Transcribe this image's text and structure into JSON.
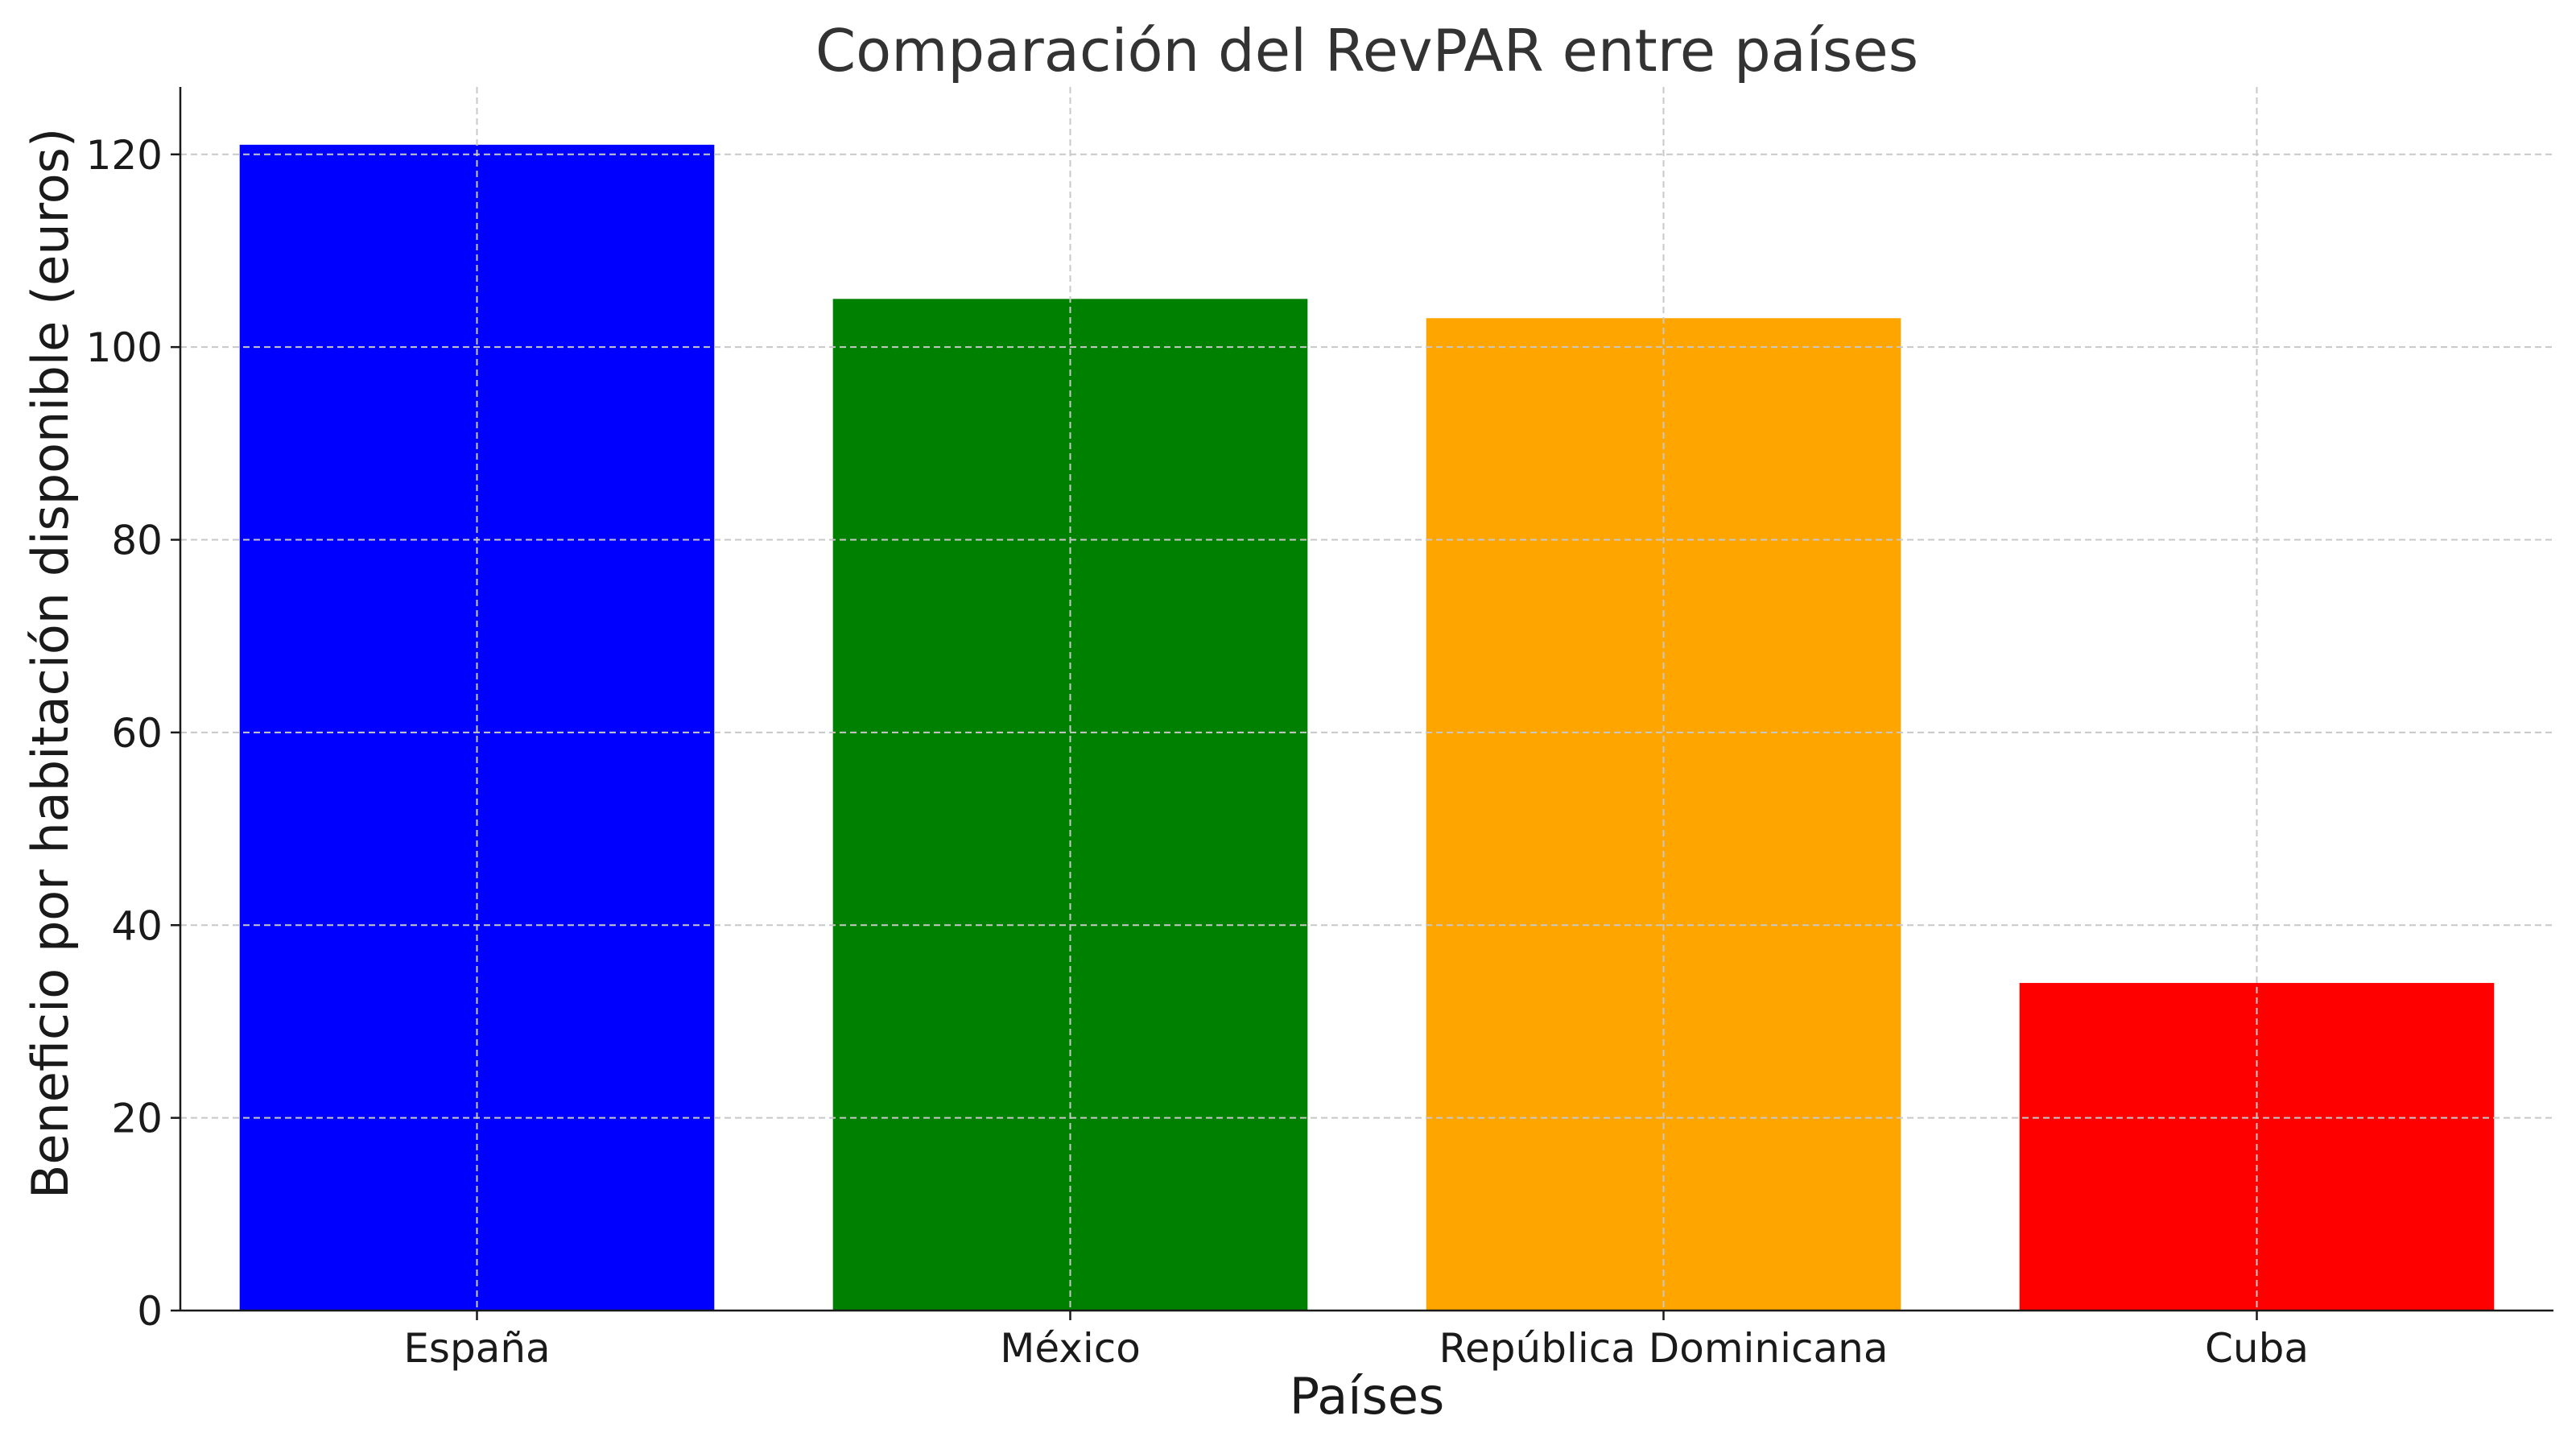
{
  "chart_data": {
    "type": "bar",
    "title": "Comparación del RevPAR entre países",
    "xlabel": "Países",
    "ylabel": "Beneficio por habitación disponible (euros)",
    "categories": [
      "España",
      "México",
      "República Dominicana",
      "Cuba"
    ],
    "values": [
      121,
      105,
      103,
      34
    ],
    "colors": [
      "#0000ff",
      "#008000",
      "#ffa500",
      "#ff0000"
    ],
    "ylim": [
      0,
      127
    ],
    "yticks": [
      0,
      20,
      40,
      60,
      80,
      100,
      120
    ],
    "grid": true
  }
}
